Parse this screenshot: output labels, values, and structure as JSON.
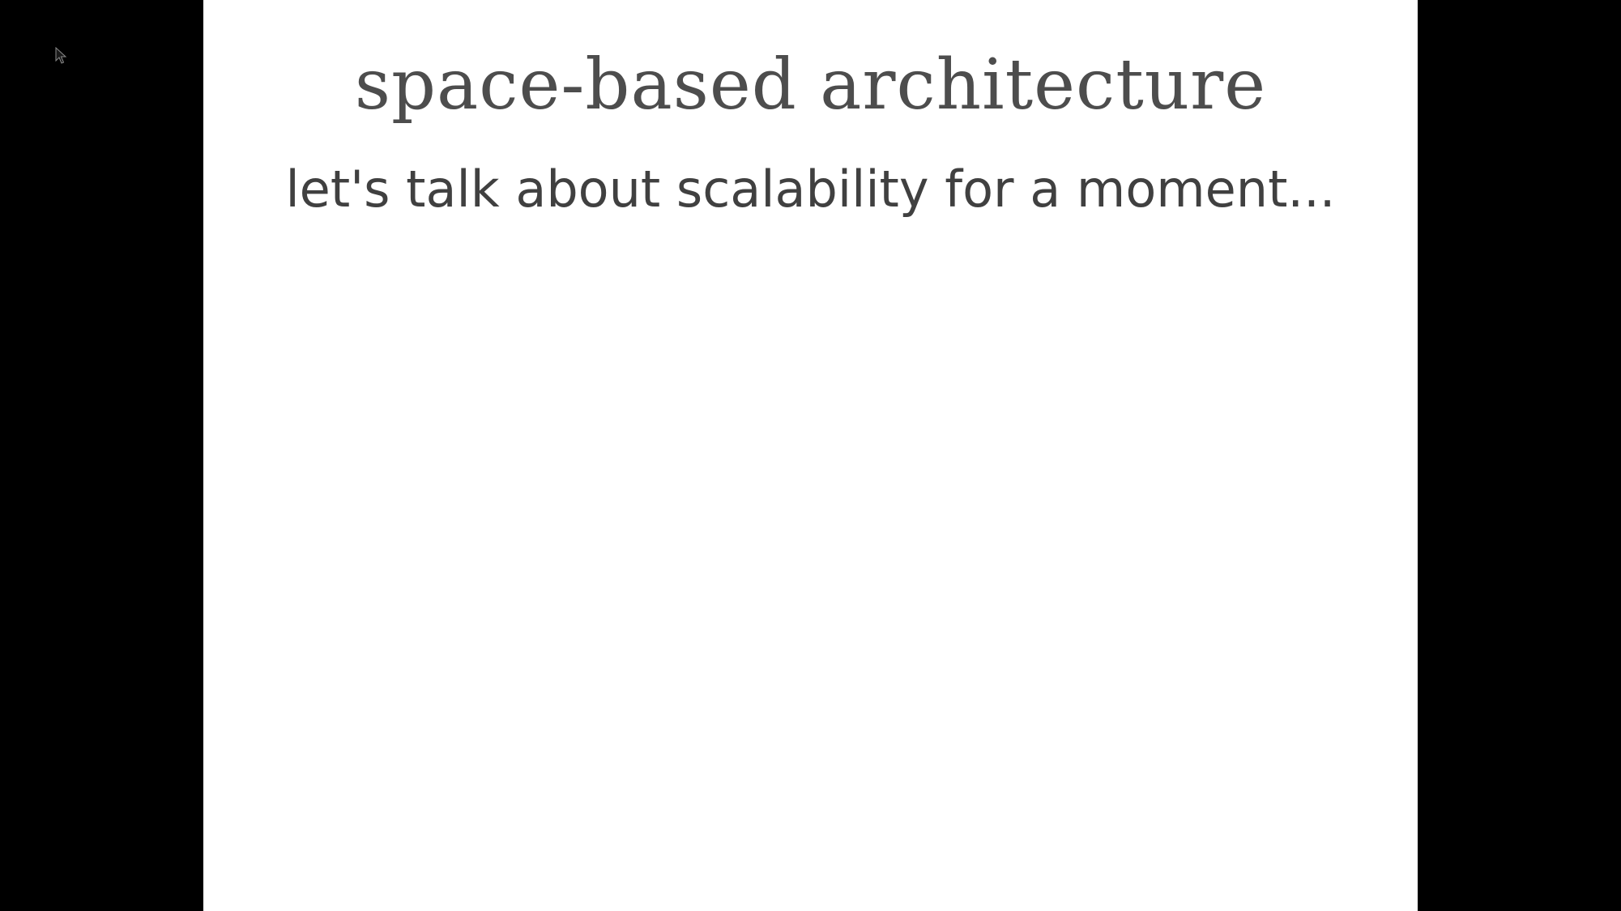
{
  "presentation": {
    "slide": {
      "title": "space-based architecture",
      "subtitle": "let's talk about scalability for a moment..."
    }
  },
  "cursor": {
    "icon": "mouse-pointer-icon"
  },
  "colors": {
    "letterbox": "#000000",
    "slide_background": "#ffffff",
    "title_text": "#4d4d4d",
    "subtitle_text": "#404040"
  }
}
